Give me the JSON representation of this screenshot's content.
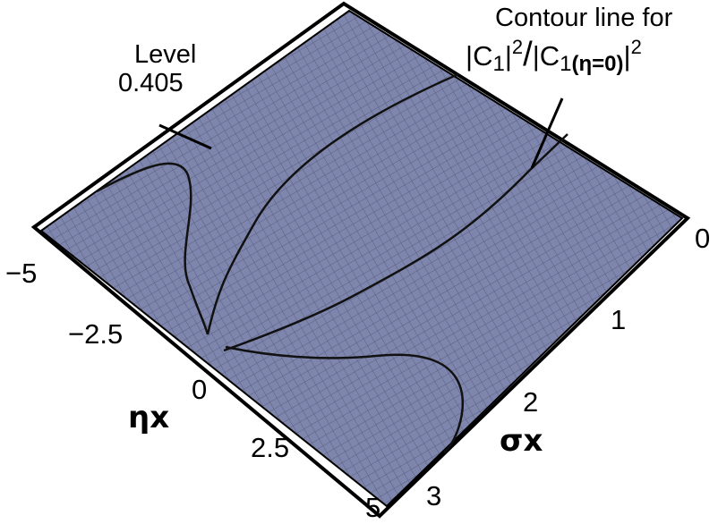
{
  "surface": {
    "level": "0.405",
    "color": "#7f86ad",
    "mesh_color": "#5a5f80",
    "frame_color": "#000000"
  },
  "annotations": {
    "level_label": "Level",
    "level_value": "0.405",
    "contour_title": "Contour line for",
    "contour_formula": {
      "bar1": "|",
      "C1": "C",
      "sub1": "1",
      "bar2": "|",
      "sup2a": "2",
      "slash": "/",
      "bar3": "|",
      "C2": "C",
      "sub2": "1",
      "arg": "(η=0)",
      "bar4": "|",
      "sup2b": "2"
    }
  },
  "axes": {
    "eta": {
      "label": "ηx",
      "ticks": [
        "−5",
        "−2.5",
        "0",
        "2.5",
        "5"
      ]
    },
    "sigma": {
      "label": "σx",
      "ticks": [
        "0",
        "1",
        "2",
        "3"
      ]
    }
  }
}
